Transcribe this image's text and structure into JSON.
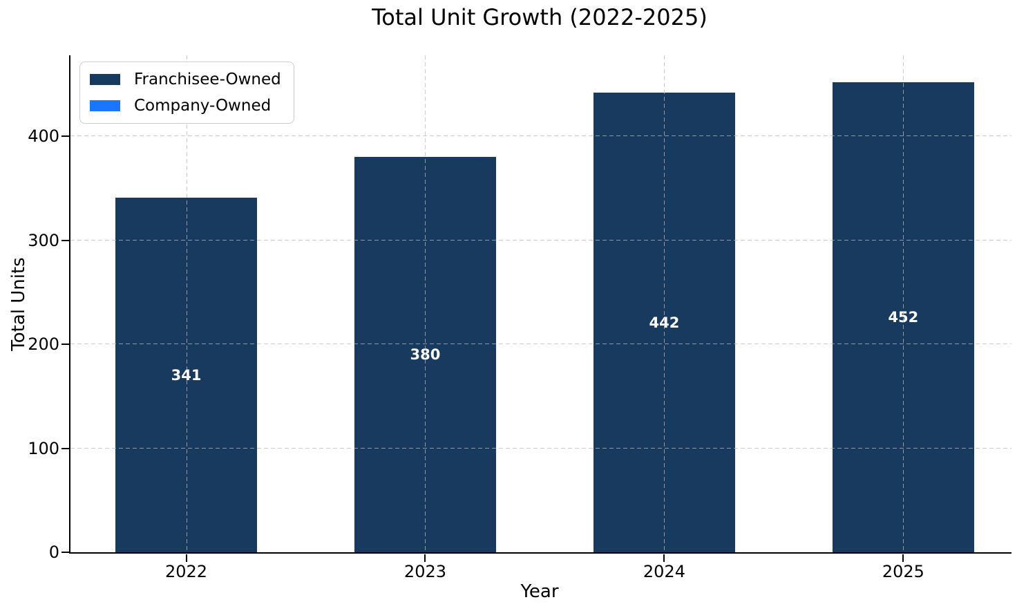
{
  "chart_data": {
    "type": "bar",
    "title": "Total Unit Growth (2022-2025)",
    "xlabel": "Year",
    "ylabel": "Total Units",
    "categories": [
      "2022",
      "2023",
      "2024",
      "2025"
    ],
    "series": [
      {
        "name": "Franchisee-Owned",
        "color": "#173a5e",
        "values": [
          341,
          380,
          442,
          452
        ]
      },
      {
        "name": "Company-Owned",
        "color": "#1a75ff",
        "values": [
          0,
          0,
          0,
          0
        ]
      }
    ],
    "bar_value_labels": [
      "341",
      "380",
      "442",
      "452"
    ],
    "bar_value_label_color": "#ffffff",
    "ylim": [
      0,
      478
    ],
    "yticks": [
      0,
      100,
      200,
      300,
      400
    ],
    "grid": {
      "style": "dashed",
      "color": "#cccccc",
      "on_top": true
    },
    "legend_position": "upper-left",
    "axis_color": "#000000",
    "background_color": "#ffffff"
  }
}
